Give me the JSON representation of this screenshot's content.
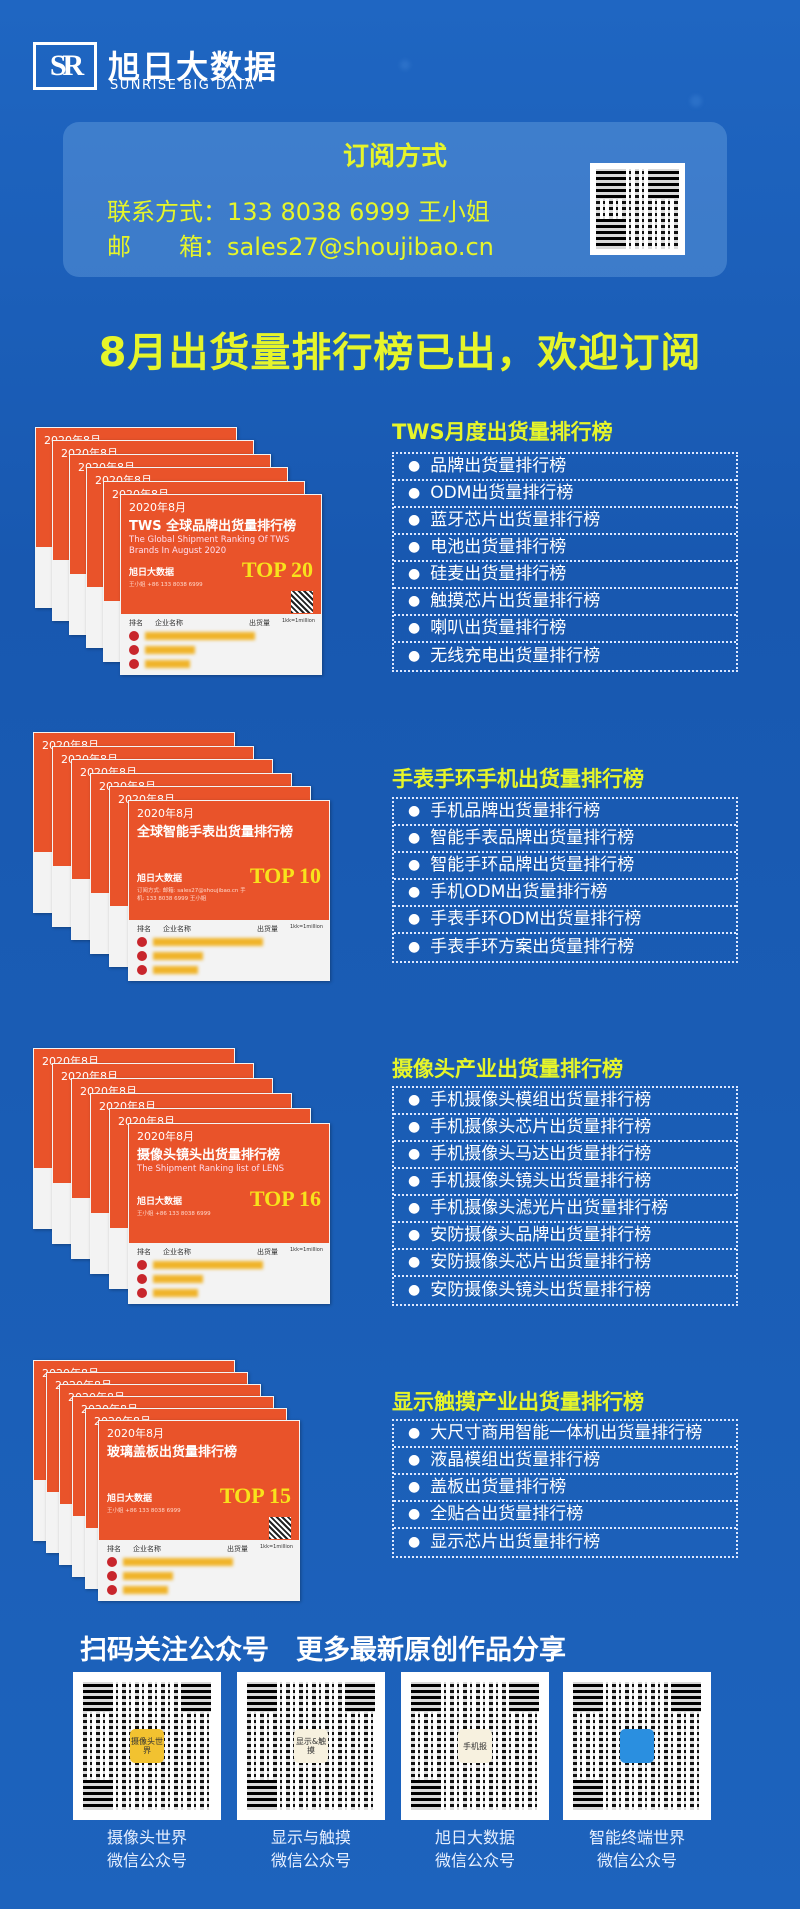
{
  "header": {
    "logo_mark": "SR",
    "brand_cn": "旭日大数据",
    "brand_en": "SUNRISE BIG DATA"
  },
  "subscribe": {
    "title": "订阅方式",
    "contact_label": "联系方式：",
    "contact_value": "133 8038 6999 王小姐",
    "email_label": "邮　　箱：",
    "email_value": "sales27@shoujibao.cn"
  },
  "headline": "8月出货量排行榜已出，欢迎订阅",
  "sections": [
    {
      "title": "TWS月度出货量排行榜",
      "items": [
        "品牌出货量排行榜",
        "ODM出货量排行榜",
        "蓝牙芯片出货量排行榜",
        "电池出货量排行榜",
        "硅麦出货量排行榜",
        "触摸芯片出货量排行榜",
        "喇叭出货量排行榜",
        "无线充电出货量排行榜"
      ],
      "card": {
        "date": "2020年8月",
        "title": "TWS 全球品牌出货量排行榜",
        "subtitle": "The Global Shipment Ranking Of TWS Brands In August 2020",
        "top": "TOP 20",
        "logo": "旭日大数据",
        "contact": "王小姐 +86 133 8038 6999",
        "col_rank": "排名",
        "col_name": "企业名称",
        "col_qty": "出货量",
        "unit": "1kk=1million"
      }
    },
    {
      "title": "手表手环手机出货量排行榜",
      "items": [
        "手机品牌出货量排行榜",
        "智能手表品牌出货量排行榜",
        "智能手环品牌出货量排行榜",
        "手机ODM出货量排行榜",
        "手表手环ODM出货量排行榜",
        "手表手环方案出货量排行榜"
      ],
      "card": {
        "date": "2020年8月",
        "title": "全球智能手表出货量排行榜",
        "subtitle": "",
        "top": "TOP 10",
        "logo": "旭日大数据",
        "contact": "订阅方式: 邮箱: sales27@shoujibao.cn 手机: 133 8038 6999 王小姐",
        "col_rank": "排名",
        "col_name": "企业名称",
        "col_qty": "出货量",
        "unit": "1kk=1million"
      }
    },
    {
      "title": "摄像头产业出货量排行榜",
      "items": [
        "手机摄像头模组出货量排行榜",
        "手机摄像头芯片出货量排行榜",
        "手机摄像头马达出货量排行榜",
        "手机摄像头镜头出货量排行榜",
        "手机摄像头滤光片出货量排行榜",
        "安防摄像头品牌出货量排行榜",
        "安防摄像头芯片出货量排行榜",
        "安防摄像头镜头出货量排行榜"
      ],
      "card": {
        "date": "2020年8月",
        "title": "摄像头镜头出货量排行榜",
        "subtitle": "The Shipment Ranking list of LENS",
        "top": "TOP 16",
        "logo": "旭日大数据",
        "contact": "王小姐 +86 133 8038 6999",
        "col_rank": "排名",
        "col_name": "企业名称",
        "col_qty": "出货量",
        "unit": "1kk=1million"
      }
    },
    {
      "title": "显示触摸产业出货量排行榜",
      "items": [
        "大尺寸商用智能一体机出货量排行榜",
        "液晶模组出货量排行榜",
        "盖板出货量排行榜",
        "全贴合出货量排行榜",
        "显示芯片出货量排行榜"
      ],
      "card": {
        "date": "2020年8月",
        "title": "玻璃盖板出货量排行榜",
        "subtitle": "",
        "top": "TOP 15",
        "logo": "旭日大数据",
        "contact": "王小姐 +86 133 8038 6999",
        "col_rank": "排名",
        "col_name": "企业名称",
        "col_qty": "出货量",
        "unit": "1kk=1million"
      }
    }
  ],
  "follow": {
    "heading": "扫码关注公众号　更多最新原创作品分享",
    "accounts": [
      {
        "name": "摄像头世界",
        "type": "微信公众号",
        "badge": "摄像头世界",
        "badge_color": "#f2c230"
      },
      {
        "name": "显示与触摸",
        "type": "微信公众号",
        "badge": "显示&触摸",
        "badge_color": "#f7f1df"
      },
      {
        "name": "旭日大数据",
        "type": "微信公众号",
        "badge": "手机报",
        "badge_color": "#f7f1df"
      },
      {
        "name": "智能终端世界",
        "type": "微信公众号",
        "badge": "",
        "badge_color": "#2a8fe0"
      }
    ]
  },
  "colors": {
    "accent_yellow": "#e6f52a",
    "card_orange": "#e9532a",
    "background": "#1a5db5"
  }
}
